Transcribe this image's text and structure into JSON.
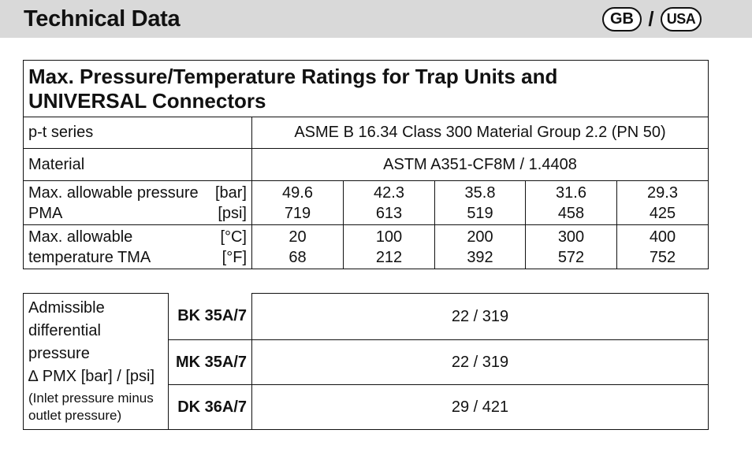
{
  "header": {
    "title": "Technical Data",
    "lang_gb": "GB",
    "lang_separator": "/",
    "lang_usa": "USA"
  },
  "ratings_table": {
    "title_line1": "Max. Pressure/Temperature Ratings for Trap Units and",
    "title_line2": "UNIVERSAL Connectors",
    "pt_series_label": "p-t series",
    "pt_series_value": "ASME B 16.34 Class 300 Material Group 2.2 (PN 50)",
    "material_label": "Material",
    "material_value": "ASTM A351-CF8M / 1.4408",
    "pressure_label_1": "Max. allowable pressure",
    "pressure_unit_1": "[bar]",
    "pressure_label_2": "PMA",
    "pressure_unit_2": "[psi]",
    "pressure_bar": [
      "49.6",
      "42.3",
      "35.8",
      "31.6",
      "29.3"
    ],
    "pressure_psi": [
      "719",
      "613",
      "519",
      "458",
      "425"
    ],
    "temperature_label_1": "Max. allowable",
    "temperature_unit_1": "[°C]",
    "temperature_label_2": "temperature TMA",
    "temperature_unit_2": "[°F]",
    "temperature_c": [
      "20",
      "100",
      "200",
      "300",
      "400"
    ],
    "temperature_f": [
      "68",
      "212",
      "392",
      "572",
      "752"
    ]
  },
  "differential_table": {
    "label_lines": [
      "Admissible",
      "differential",
      "pressure",
      "∆ PMX [bar] / [psi]"
    ],
    "note_lines": [
      "(Inlet pressure minus",
      "outlet pressure)"
    ],
    "rows": [
      {
        "model": "BK 35A/7",
        "value": "22 / 319"
      },
      {
        "model": "MK 35A/7",
        "value": "22 / 319"
      },
      {
        "model": "DK 36A/7",
        "value": "29 / 421"
      }
    ]
  }
}
